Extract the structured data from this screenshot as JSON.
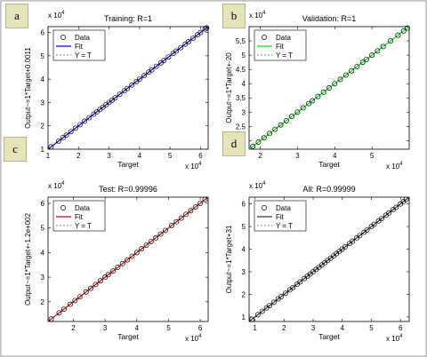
{
  "tags": [
    "a",
    "b",
    "c",
    "d"
  ],
  "chart_data": [
    {
      "type": "scatter",
      "title": "Training: R=1",
      "xlabel": "Target",
      "ylabel": "Output~=1*Target+0.0011",
      "x_exponent": "x 10^4",
      "y_exponent": "x 10^4",
      "xlim": [
        10000,
        62500
      ],
      "ylim": [
        10000,
        62500
      ],
      "x_ticks": [
        10000,
        20000,
        30000,
        40000,
        50000,
        60000
      ],
      "x_tick_labels": [
        "1",
        "2",
        "3",
        "4",
        "5",
        "6"
      ],
      "y_ticks": [
        10000,
        20000,
        30000,
        40000,
        50000,
        60000
      ],
      "y_tick_labels": [
        "1",
        "2",
        "3",
        "4",
        "5",
        "6"
      ],
      "fit_color": "#0000ff",
      "legend": [
        "Data",
        "Fit",
        "Y = T"
      ],
      "legend_position": "top-left",
      "points": [
        11000,
        13500,
        15000,
        16000,
        17500,
        19000,
        20500,
        22000,
        23500,
        25000,
        26000,
        27000,
        28000,
        29000,
        30000,
        31000,
        32000,
        33500,
        35000,
        36000,
        37500,
        39000,
        40000,
        41500,
        43000,
        44000,
        45500,
        47000,
        48000,
        49500,
        51000,
        52000,
        53500,
        55000,
        56000,
        57500,
        59000,
        60000,
        61500,
        62000
      ]
    },
    {
      "type": "scatter",
      "title": "Validation: R=1",
      "xlabel": "Target",
      "ylabel": "Output~=1*Target+-20",
      "x_exponent": "x 10^4",
      "y_exponent": "x 10^4",
      "xlim": [
        17000,
        60000
      ],
      "ylim": [
        17000,
        60000
      ],
      "x_ticks": [
        20000,
        30000,
        40000,
        50000
      ],
      "x_tick_labels": [
        "2",
        "3",
        "4",
        "5"
      ],
      "y_ticks": [
        20000,
        25000,
        30000,
        35000,
        40000,
        45000,
        50000,
        55000
      ],
      "y_tick_labels": [
        "2",
        "2.5",
        "3",
        "3.5",
        "4",
        "4.5",
        "5",
        "5.5"
      ],
      "fit_color": "#00ee00",
      "legend": [
        "Data",
        "Fit",
        "Y = T"
      ],
      "legend_position": "top-left",
      "points": [
        18000,
        19500,
        21000,
        22500,
        24000,
        25500,
        27000,
        28500,
        30000,
        31500,
        33000,
        34000,
        35500,
        37000,
        38500,
        40000,
        41500,
        43000,
        44500,
        46000,
        47500,
        48500,
        50000,
        51500,
        53000,
        55000,
        57000,
        58500,
        59500
      ]
    },
    {
      "type": "scatter",
      "title": "Test: R=0.99996",
      "xlabel": "Target",
      "ylabel": "Output~=1*Target+-1.2e+002",
      "x_exponent": "x 10^4",
      "y_exponent": "x 10^4",
      "xlim": [
        12000,
        62500
      ],
      "ylim": [
        12000,
        62500
      ],
      "x_ticks": [
        20000,
        30000,
        40000,
        50000,
        60000
      ],
      "x_tick_labels": [
        "2",
        "3",
        "4",
        "5",
        "6"
      ],
      "y_ticks": [
        20000,
        30000,
        40000,
        50000,
        60000
      ],
      "y_tick_labels": [
        "2",
        "3",
        "4",
        "5",
        "6"
      ],
      "fit_color": "#dd0000",
      "legend": [
        "Data",
        "Fit",
        "Y = T"
      ],
      "legend_position": "top-left",
      "points": [
        13000,
        15500,
        17000,
        19000,
        20500,
        22000,
        24000,
        25500,
        27000,
        28500,
        30000,
        31000,
        32500,
        34000,
        35500,
        37000,
        38500,
        40000,
        41500,
        43000,
        44500,
        46000,
        47500,
        49000,
        51000,
        52500,
        54000,
        55500,
        57000,
        58500,
        60000,
        61500
      ]
    },
    {
      "type": "scatter",
      "title": "All: R=0.99999",
      "xlabel": "Target",
      "ylabel": "Output~=1*Target+31",
      "x_exponent": "x 10^4",
      "y_exponent": "x 10^4",
      "xlim": [
        8000,
        63000
      ],
      "ylim": [
        8000,
        63000
      ],
      "x_ticks": [
        10000,
        20000,
        30000,
        40000,
        50000,
        60000
      ],
      "x_tick_labels": [
        "1",
        "2",
        "3",
        "4",
        "5",
        "6"
      ],
      "y_ticks": [
        10000,
        20000,
        30000,
        40000,
        50000,
        60000
      ],
      "y_tick_labels": [
        "1",
        "2",
        "3",
        "4",
        "5",
        "6"
      ],
      "fit_color": "#333333",
      "legend": [
        "Data",
        "Fit",
        "Y = T"
      ],
      "legend_position": "top-left",
      "points": [
        9000,
        11000,
        12500,
        14000,
        15000,
        16500,
        18000,
        19000,
        20500,
        22000,
        23000,
        24500,
        25500,
        27000,
        28000,
        29000,
        30000,
        31000,
        32000,
        33000,
        34000,
        35000,
        36000,
        37000,
        38000,
        39000,
        40000,
        41000,
        42500,
        43500,
        45000,
        46000,
        47500,
        48500,
        50000,
        51000,
        52500,
        53500,
        55000,
        56000,
        57500,
        58500,
        60000,
        61000,
        62000
      ]
    }
  ]
}
